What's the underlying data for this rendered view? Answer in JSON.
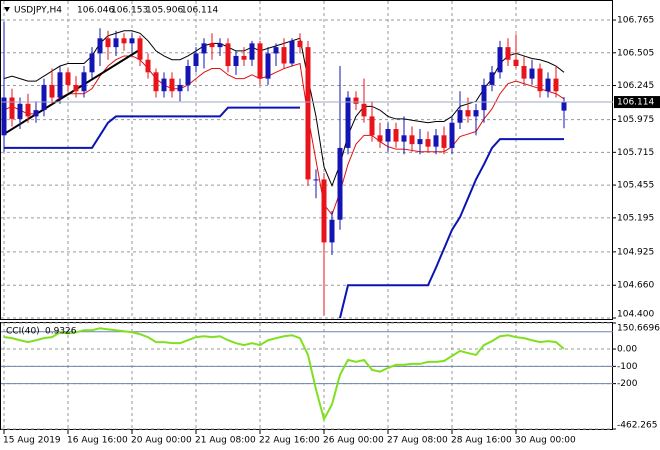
{
  "chart_data": [
    {
      "type": "candlestick",
      "title": "USDJPY,H4",
      "categories": [
        "15 Aug 2019",
        null,
        null,
        null,
        null,
        null,
        null,
        null,
        "16 Aug 16:00",
        null,
        null,
        null,
        null,
        null,
        null,
        null,
        "20 Aug 00:00",
        null,
        null,
        null,
        null,
        null,
        null,
        null,
        "21 Aug 08:00",
        null,
        null,
        null,
        null,
        null,
        null,
        null,
        "22 Aug 16:00",
        null,
        null,
        null,
        null,
        null,
        null,
        null,
        "26 Aug 00:00",
        null,
        null,
        null,
        null,
        null,
        null,
        null,
        "27 Aug 08:00",
        null,
        null,
        null,
        null,
        null,
        null,
        null,
        "28 Aug 16:00",
        null,
        null,
        null,
        null,
        null,
        null,
        null,
        "30 Aug 00:00",
        null,
        null,
        null,
        null,
        null,
        null
      ],
      "ohlc": [
        [
          105.85,
          106.75,
          105.72,
          106.15
        ],
        [
          106.15,
          106.22,
          105.92,
          105.98
        ],
        [
          105.98,
          106.15,
          105.9,
          106.1
        ],
        [
          106.1,
          106.18,
          105.95,
          106.0
        ],
        [
          106.0,
          106.12,
          105.95,
          106.05
        ],
        [
          106.05,
          106.3,
          106.0,
          106.25
        ],
        [
          106.25,
          106.38,
          106.1,
          106.15
        ],
        [
          106.15,
          106.4,
          106.1,
          106.35
        ],
        [
          106.35,
          106.38,
          106.2,
          106.25
        ],
        [
          106.25,
          106.32,
          106.15,
          106.2
        ],
        [
          106.2,
          106.4,
          106.15,
          106.35
        ],
        [
          106.35,
          106.55,
          106.3,
          106.5
        ],
        [
          106.5,
          106.7,
          106.4,
          106.62
        ],
        [
          106.62,
          106.68,
          106.45,
          106.55
        ],
        [
          106.55,
          106.68,
          106.48,
          106.62
        ],
        [
          106.62,
          106.66,
          106.52,
          106.58
        ],
        [
          106.58,
          106.66,
          106.5,
          106.62
        ],
        [
          106.62,
          106.64,
          106.4,
          106.45
        ],
        [
          106.45,
          106.5,
          106.3,
          106.35
        ],
        [
          106.35,
          106.38,
          106.15,
          106.2
        ],
        [
          106.2,
          106.35,
          106.15,
          106.3
        ],
        [
          106.3,
          106.35,
          106.15,
          106.2
        ],
        [
          106.2,
          106.3,
          106.12,
          106.25
        ],
        [
          106.25,
          106.45,
          106.2,
          106.4
        ],
        [
          106.4,
          106.55,
          106.35,
          106.5
        ],
        [
          106.5,
          106.62,
          106.38,
          106.58
        ],
        [
          106.58,
          106.66,
          106.45,
          106.55
        ],
        [
          106.55,
          106.62,
          106.48,
          106.58
        ],
        [
          106.58,
          106.62,
          106.35,
          106.4
        ],
        [
          106.4,
          106.52,
          106.33,
          106.48
        ],
        [
          106.48,
          106.55,
          106.4,
          106.45
        ],
        [
          106.45,
          106.6,
          106.4,
          106.58
        ],
        [
          106.58,
          106.6,
          106.25,
          106.3
        ],
        [
          106.3,
          106.55,
          106.25,
          106.5
        ],
        [
          106.5,
          106.58,
          106.4,
          106.55
        ],
        [
          106.55,
          106.62,
          106.38,
          106.42
        ],
        [
          106.42,
          106.62,
          106.4,
          106.6
        ],
        [
          106.6,
          106.66,
          106.5,
          106.55
        ],
        [
          106.55,
          106.6,
          105.45,
          105.5
        ],
        [
          105.5,
          105.58,
          105.35,
          105.5
        ],
        [
          105.5,
          105.55,
          104.42,
          105.0
        ],
        [
          105.0,
          105.25,
          104.9,
          105.18
        ],
        [
          105.18,
          106.4,
          105.1,
          105.75
        ],
        [
          105.75,
          106.2,
          105.7,
          106.15
        ],
        [
          106.15,
          106.2,
          106.05,
          106.1
        ],
        [
          106.1,
          106.3,
          105.95,
          106.0
        ],
        [
          106.0,
          106.12,
          105.8,
          105.85
        ],
        [
          105.85,
          105.95,
          105.75,
          105.8
        ],
        [
          105.8,
          105.95,
          105.72,
          105.9
        ],
        [
          105.9,
          105.95,
          105.75,
          105.8
        ],
        [
          105.8,
          106.0,
          105.7,
          105.85
        ],
        [
          105.85,
          105.92,
          105.72,
          105.78
        ],
        [
          105.78,
          105.9,
          105.7,
          105.82
        ],
        [
          105.82,
          105.88,
          105.72,
          105.76
        ],
        [
          105.76,
          105.9,
          105.7,
          105.85
        ],
        [
          105.85,
          105.92,
          105.7,
          105.75
        ],
        [
          105.75,
          106.0,
          105.7,
          105.95
        ],
        [
          105.95,
          106.2,
          105.9,
          106.05
        ],
        [
          106.05,
          106.15,
          105.95,
          106.0
        ],
        [
          106.0,
          106.1,
          105.85,
          106.05
        ],
        [
          106.05,
          106.3,
          105.95,
          106.25
        ],
        [
          106.25,
          106.4,
          106.2,
          106.35
        ],
        [
          106.35,
          106.6,
          106.3,
          106.55
        ],
        [
          106.55,
          106.62,
          106.4,
          106.45
        ],
        [
          106.45,
          106.65,
          106.38,
          106.4
        ],
        [
          106.4,
          106.48,
          106.25,
          106.3
        ],
        [
          106.3,
          106.45,
          106.25,
          106.38
        ],
        [
          106.38,
          106.42,
          106.15,
          106.2
        ],
        [
          106.2,
          106.35,
          106.15,
          106.3
        ],
        [
          106.3,
          106.4,
          106.15,
          106.2
        ],
        [
          106.046,
          106.153,
          105.906,
          106.114
        ]
      ],
      "up_color": "#1414b4",
      "down_color": "#e8131b",
      "series": [
        {
          "color": "#000000",
          "width": 1,
          "values": [
            106.3,
            106.32,
            106.3,
            106.28,
            106.28,
            106.32,
            106.36,
            106.4,
            106.42,
            106.42,
            106.42,
            106.48,
            106.58,
            106.64,
            106.66,
            106.68,
            106.68,
            106.66,
            106.6,
            106.52,
            106.48,
            106.45,
            106.45,
            106.48,
            106.52,
            106.56,
            106.58,
            106.58,
            106.55,
            106.52,
            106.52,
            106.55,
            106.52,
            106.54,
            106.56,
            106.58,
            106.6,
            106.62,
            106.3,
            106.0,
            105.6,
            105.45,
            105.62,
            105.85,
            106.0,
            106.08,
            106.08,
            106.05,
            106.0,
            105.98,
            105.98,
            105.97,
            105.96,
            105.95,
            105.96,
            105.96,
            106.0,
            106.08,
            106.1,
            106.12,
            106.22,
            106.3,
            106.42,
            106.48,
            106.5,
            106.48,
            106.46,
            106.45,
            106.43,
            106.4,
            106.35
          ]
        },
        {
          "color": "#e01010",
          "width": 1,
          "values": [
            106.05,
            106.08,
            106.05,
            106.02,
            106.02,
            106.05,
            106.1,
            106.15,
            106.18,
            106.18,
            106.18,
            106.22,
            106.32,
            106.4,
            106.45,
            106.48,
            106.48,
            106.45,
            106.38,
            106.3,
            106.25,
            106.22,
            106.22,
            106.25,
            106.3,
            106.35,
            106.38,
            106.38,
            106.33,
            106.3,
            106.3,
            106.33,
            106.3,
            106.32,
            106.35,
            106.38,
            106.4,
            106.42,
            106.0,
            105.65,
            105.3,
            105.22,
            105.4,
            105.62,
            105.78,
            105.85,
            105.85,
            105.8,
            105.76,
            105.74,
            105.74,
            105.73,
            105.72,
            105.72,
            105.72,
            105.72,
            105.76,
            105.84,
            105.86,
            105.88,
            105.98,
            106.06,
            106.18,
            106.26,
            106.28,
            106.26,
            106.24,
            106.22,
            106.2,
            106.18,
            106.14
          ]
        },
        {
          "color": "#0a14b4",
          "width": 2,
          "values": [
            105.75,
            105.75,
            105.75,
            105.75,
            105.75,
            105.75,
            105.75,
            105.75,
            105.75,
            105.75,
            105.75,
            105.75,
            105.85,
            105.95,
            106.0,
            106.0,
            106.0,
            106.0,
            106.0,
            106.0,
            106.0,
            106.0,
            106.0,
            106.0,
            106.0,
            106.0,
            106.0,
            106.0,
            106.07,
            106.07,
            106.07,
            106.07,
            106.07,
            106.07,
            106.07,
            106.07,
            106.07,
            106.07,
            null,
            null,
            null,
            null,
            104.4,
            104.66,
            104.66,
            104.66,
            104.66,
            104.66,
            104.66,
            104.66,
            104.66,
            104.66,
            104.66,
            104.66,
            104.8,
            104.95,
            105.1,
            105.2,
            105.35,
            105.5,
            105.62,
            105.75,
            105.82,
            105.82,
            105.82,
            105.82,
            105.82,
            105.82,
            105.82,
            105.82,
            105.82
          ]
        }
      ],
      "trendline": {
        "x": [
          0,
          17
        ],
        "values": [
          105.86,
          106.53
        ],
        "color": "#000000"
      },
      "ylim": [
        104.4,
        106.924
      ],
      "yticks": [
        106.765,
        106.505,
        106.245,
        105.975,
        105.715,
        105.455,
        105.195,
        104.925,
        {
          "value": 104.66,
          "label": "104.660"
        },
        {
          "value": 104.4,
          "label": "104.400"
        }
      ],
      "grid": true
    },
    {
      "type": "line",
      "title": "CCI(40)",
      "color": "#80e020",
      "values": [
        69,
        63,
        51,
        40,
        51,
        63,
        69,
        97,
        91,
        97,
        109,
        109,
        120,
        114,
        109,
        103,
        97,
        86,
        69,
        40,
        40,
        34,
        34,
        51,
        69,
        74,
        69,
        74,
        51,
        34,
        23,
        34,
        23,
        51,
        63,
        74,
        80,
        63,
        -34,
        -234,
        -406,
        -320,
        -149,
        -63,
        -74,
        -63,
        -120,
        -131,
        -109,
        -91,
        -91,
        -86,
        -86,
        -74,
        -74,
        -69,
        -40,
        -11,
        -23,
        -34,
        23,
        46,
        74,
        80,
        69,
        63,
        51,
        40,
        46,
        40,
        0.9326
      ],
      "levels": [
        100,
        -100,
        -200
      ],
      "level_color": "#6f86b0",
      "ylim": [
        -462.265,
        150.6696
      ],
      "yticks": [
        150.6696,
        {
          "value": 0,
          "label": "0.00"
        },
        -100,
        -200,
        -462.265
      ],
      "grid": true
    }
  ]
}
